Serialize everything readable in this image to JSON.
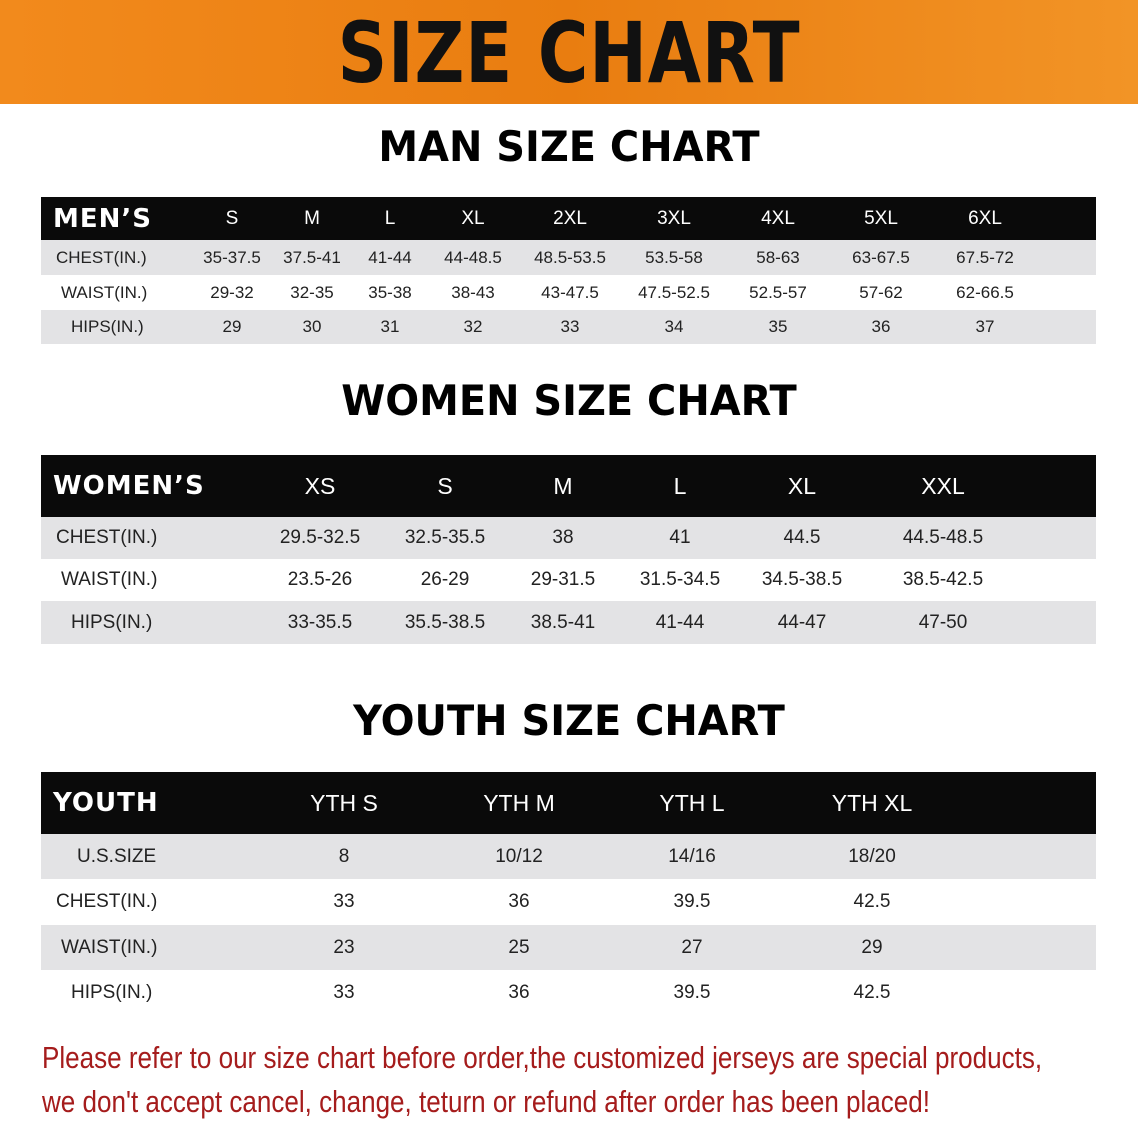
{
  "banner": {
    "title": "SIZE CHART",
    "color": "#ee8418"
  },
  "men": {
    "title": "MAN SIZE CHART",
    "header": "MEN’S",
    "sizes": [
      "S",
      "M",
      "L",
      "XL",
      "2XL",
      "3XL",
      "4XL",
      "5XL",
      "6XL"
    ],
    "rows": [
      {
        "label": "CHEST(IN.)",
        "values": [
          "35-37.5",
          "37.5-41",
          "41-44",
          "44-48.5",
          "48.5-53.5",
          "53.5-58",
          "58-63",
          "63-67.5",
          "67.5-72"
        ]
      },
      {
        "label": "WAIST(IN.)",
        "values": [
          "29-32",
          "32-35",
          "35-38",
          "38-43",
          "43-47.5",
          "47.5-52.5",
          "52.5-57",
          "57-62",
          "62-66.5"
        ]
      },
      {
        "label": "HIPS(IN.)",
        "values": [
          "29",
          "30",
          "31",
          "32",
          "33",
          "34",
          "35",
          "36",
          "37"
        ]
      }
    ]
  },
  "women": {
    "title": "WOMEN SIZE CHART",
    "header": "WOMEN’S",
    "sizes": [
      "XS",
      "S",
      "M",
      "L",
      "XL",
      "XXL"
    ],
    "rows": [
      {
        "label": "CHEST(IN.)",
        "values": [
          "29.5-32.5",
          "32.5-35.5",
          "38",
          "41",
          "44.5",
          "44.5-48.5"
        ]
      },
      {
        "label": "WAIST(IN.)",
        "values": [
          "23.5-26",
          "26-29",
          "29-31.5",
          "31.5-34.5",
          "34.5-38.5",
          "38.5-42.5"
        ]
      },
      {
        "label": "HIPS(IN.)",
        "values": [
          "33-35.5",
          "35.5-38.5",
          "38.5-41",
          "41-44",
          "44-47",
          "47-50"
        ]
      }
    ]
  },
  "youth": {
    "title": "YOUTH SIZE CHART",
    "header": "YOUTH",
    "sizes": [
      "YTH S",
      "YTH M",
      "YTH L",
      "YTH XL"
    ],
    "rows": [
      {
        "label": "U.S.SIZE",
        "values": [
          "8",
          "10/12",
          "14/16",
          "18/20"
        ]
      },
      {
        "label": "CHEST(IN.)",
        "values": [
          "33",
          "36",
          "39.5",
          "42.5"
        ]
      },
      {
        "label": "WAIST(IN.)",
        "values": [
          "23",
          "25",
          "27",
          "29"
        ]
      },
      {
        "label": "HIPS(IN.)",
        "values": [
          "33",
          "36",
          "39.5",
          "42.5"
        ]
      }
    ]
  },
  "note": {
    "line1": "Please refer to our size chart before order,the customized jerseys are special products,",
    "line2": "we don't accept cancel, change, teturn or refund after order has been placed!",
    "color": "#a51c1c"
  }
}
